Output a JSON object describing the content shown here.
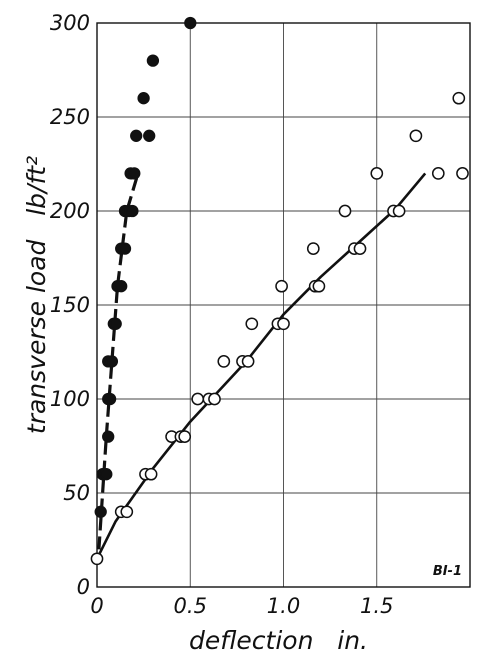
{
  "chart_data": {
    "type": "scatter",
    "xlabel": "deflection   in.",
    "ylabel": "transverse load   lb/ft²",
    "xlim": [
      0,
      2.0
    ],
    "ylim": [
      0,
      300
    ],
    "x_ticks": [
      0,
      0.5,
      1.0,
      1.5
    ],
    "x_tick_labels": [
      "0",
      "0.5",
      "1.0",
      "1.5"
    ],
    "y_ticks": [
      0,
      50,
      100,
      150,
      200,
      250,
      300
    ],
    "y_tick_labels": [
      "0",
      "50",
      "100",
      "150",
      "200",
      "250",
      "300"
    ],
    "grid": true,
    "annotation": "BI-1",
    "series": [
      {
        "marker": "filled-circle",
        "color": "#111111",
        "points": [
          [
            0.02,
            40
          ],
          [
            0.03,
            60
          ],
          [
            0.05,
            60
          ],
          [
            0.06,
            80
          ],
          [
            0.06,
            100
          ],
          [
            0.07,
            100
          ],
          [
            0.06,
            120
          ],
          [
            0.08,
            120
          ],
          [
            0.09,
            140
          ],
          [
            0.1,
            140
          ],
          [
            0.11,
            160
          ],
          [
            0.13,
            160
          ],
          [
            0.13,
            180
          ],
          [
            0.15,
            180
          ],
          [
            0.15,
            200
          ],
          [
            0.17,
            200
          ],
          [
            0.19,
            200
          ],
          [
            0.18,
            220
          ],
          [
            0.2,
            220
          ],
          [
            0.21,
            240
          ],
          [
            0.25,
            260
          ],
          [
            0.28,
            240
          ],
          [
            0.3,
            280
          ],
          [
            0.5,
            300
          ]
        ]
      },
      {
        "marker": "open-circle",
        "color": "#111111",
        "points": [
          [
            0.0,
            15
          ],
          [
            0.13,
            40
          ],
          [
            0.16,
            40
          ],
          [
            0.26,
            60
          ],
          [
            0.29,
            60
          ],
          [
            0.4,
            80
          ],
          [
            0.45,
            80
          ],
          [
            0.47,
            80
          ],
          [
            0.54,
            100
          ],
          [
            0.6,
            100
          ],
          [
            0.63,
            100
          ],
          [
            0.68,
            120
          ],
          [
            0.78,
            120
          ],
          [
            0.81,
            120
          ],
          [
            0.83,
            140
          ],
          [
            0.97,
            140
          ],
          [
            1.0,
            140
          ],
          [
            0.99,
            160
          ],
          [
            1.17,
            160
          ],
          [
            1.19,
            160
          ],
          [
            1.16,
            180
          ],
          [
            1.38,
            180
          ],
          [
            1.41,
            180
          ],
          [
            1.33,
            200
          ],
          [
            1.59,
            200
          ],
          [
            1.62,
            200
          ],
          [
            1.5,
            220
          ],
          [
            1.83,
            220
          ],
          [
            1.96,
            220
          ],
          [
            1.71,
            240
          ],
          [
            1.94,
            260
          ]
        ]
      }
    ],
    "fit_curves": [
      {
        "style": "dashed",
        "points": [
          [
            0.01,
            20
          ],
          [
            0.05,
            80
          ],
          [
            0.11,
            160
          ],
          [
            0.16,
            200
          ],
          [
            0.22,
            220
          ]
        ]
      },
      {
        "style": "solid",
        "points": [
          [
            0.0,
            15
          ],
          [
            0.1,
            35
          ],
          [
            0.3,
            63
          ],
          [
            0.5,
            88
          ],
          [
            0.8,
            120
          ],
          [
            1.0,
            145
          ],
          [
            1.2,
            165
          ],
          [
            1.4,
            183
          ],
          [
            1.6,
            201
          ],
          [
            1.76,
            220
          ]
        ]
      }
    ]
  }
}
